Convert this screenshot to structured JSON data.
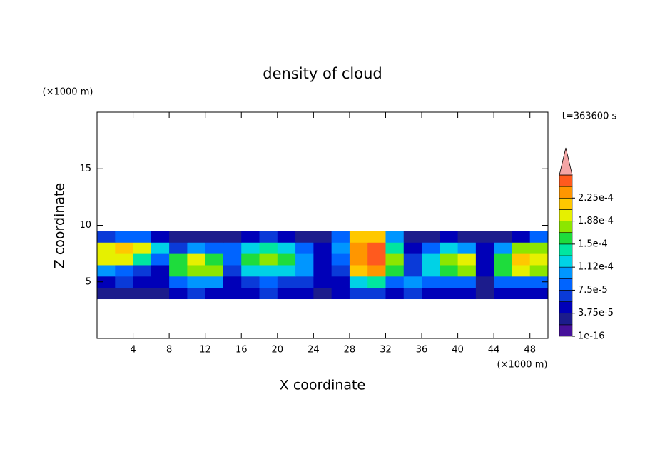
{
  "chart_data": {
    "type": "contour",
    "title": "density of cloud",
    "xlabel": "X coordinate",
    "ylabel": "Z coordinate",
    "x_unit": "(×1000 m)",
    "y_unit": "(×1000 m)",
    "time_label": "t=363600 s",
    "xlim": [
      0,
      50
    ],
    "ylim": [
      0,
      20
    ],
    "xticks": [
      4,
      8,
      12,
      16,
      20,
      24,
      28,
      32,
      36,
      40,
      44,
      48
    ],
    "yticks": [
      5,
      10,
      15
    ],
    "x": [
      1,
      3,
      5,
      7,
      9,
      11,
      13,
      15,
      17,
      19,
      21,
      23,
      25,
      27,
      29,
      31,
      33,
      35,
      37,
      39,
      41,
      43,
      45,
      47,
      49
    ],
    "y": [
      4,
      5,
      6,
      7,
      8,
      9
    ],
    "values": [
      [
        2e-05,
        3e-05,
        3e-05,
        3e-05,
        5e-05,
        6e-05,
        5e-05,
        4e-05,
        5e-05,
        6e-05,
        5e-05,
        4e-05,
        3e-05,
        4e-05,
        6e-05,
        6e-05,
        5e-05,
        6e-05,
        5e-05,
        5e-05,
        4e-05,
        3e-05,
        5e-05,
        5e-05,
        5e-05
      ],
      [
        4e-05,
        7e-05,
        5e-05,
        4e-05,
        9e-05,
        0.0001,
        0.0001,
        5e-05,
        7e-05,
        8e-05,
        7e-05,
        6e-05,
        4e-05,
        5e-05,
        0.00013,
        0.00014,
        9e-05,
        0.0001,
        8e-05,
        9e-05,
        8e-05,
        3e-05,
        8e-05,
        9e-05,
        8e-05
      ],
      [
        0.0001,
        9e-05,
        6e-05,
        5e-05,
        0.00016,
        0.00018,
        0.00017,
        7e-05,
        0.00012,
        0.00013,
        0.00012,
        0.0001,
        4e-05,
        7e-05,
        0.00022,
        0.00023,
        0.00016,
        7e-05,
        0.00012,
        0.00016,
        0.00017,
        4e-05,
        0.00016,
        0.00019,
        0.00018
      ],
      [
        0.00019,
        0.0002,
        0.00014,
        8e-05,
        0.00015,
        0.00019,
        0.00016,
        9e-05,
        0.00015,
        0.00017,
        0.00015,
        0.00011,
        5e-05,
        9e-05,
        0.00024,
        0.00025,
        0.00018,
        6e-05,
        0.00013,
        0.00018,
        0.00019,
        5e-05,
        0.00015,
        0.00021,
        0.0002
      ],
      [
        0.0002,
        0.00021,
        0.00019,
        0.00012,
        6e-05,
        0.0001,
        9e-05,
        8e-05,
        0.00012,
        0.00014,
        0.00013,
        9e-05,
        4e-05,
        0.0001,
        0.00024,
        0.00025,
        0.00014,
        5e-05,
        8e-05,
        0.00013,
        0.00011,
        4e-05,
        0.0001,
        0.00018,
        0.00017
      ],
      [
        6e-05,
        8e-05,
        9e-05,
        5e-05,
        3e-05,
        2e-05,
        2e-05,
        3e-05,
        5e-05,
        6e-05,
        5e-05,
        3e-05,
        2e-05,
        8e-05,
        0.00022,
        0.00022,
        0.0001,
        3e-05,
        2e-05,
        4e-05,
        3e-05,
        2e-05,
        3e-05,
        5e-05,
        8e-05
      ]
    ],
    "colorbar": {
      "levels": [
        1e-16,
        1.875e-05,
        3.75e-05,
        5.625e-05,
        7.5e-05,
        9.375e-05,
        0.0001125,
        0.00013125,
        0.00015,
        0.00016875,
        0.0001875,
        0.00020625,
        0.000225,
        0.00024375,
        0.0002625
      ],
      "colors": [
        "#46119a",
        "#1c1c8c",
        "#0000b8",
        "#0a3ad8",
        "#0064ff",
        "#0096ff",
        "#00d2e6",
        "#00e6a0",
        "#1edc3c",
        "#8ce600",
        "#e6f000",
        "#ffc800",
        "#ff9600",
        "#ff5a1e"
      ],
      "extend_color": "#f4a6a6",
      "ticks": [
        {
          "value": 1e-16,
          "label": "1e-16"
        },
        {
          "value": 3.75e-05,
          "label": "3.75e-5"
        },
        {
          "value": 7.5e-05,
          "label": "7.5e-5"
        },
        {
          "value": 0.0001125,
          "label": "1.12e-4"
        },
        {
          "value": 0.00015,
          "label": "1.5e-4"
        },
        {
          "value": 0.0001875,
          "label": "1.88e-4"
        },
        {
          "value": 0.000225,
          "label": "2.25e-4"
        }
      ]
    }
  }
}
